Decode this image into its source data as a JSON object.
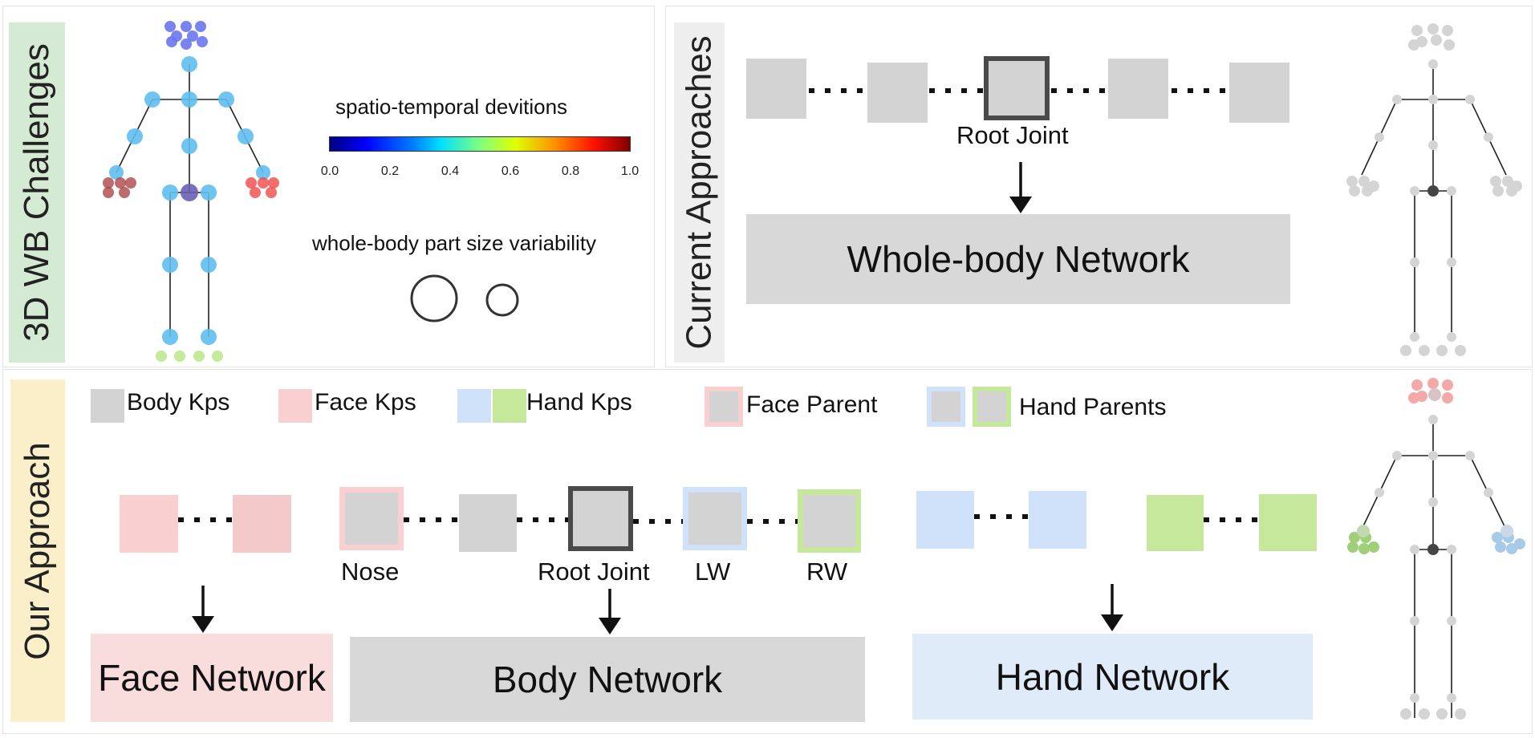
{
  "challenges": {
    "side_label": "3D WB Challenges",
    "colorbar_title": "spatio-temporal devitions",
    "colorbar_ticks": [
      "0.0",
      "0.2",
      "0.4",
      "0.6",
      "0.8",
      "1.0"
    ],
    "size_title": "whole-body part size variability"
  },
  "current": {
    "side_label": "Current Approaches",
    "root_label": "Root Joint",
    "network_label": "Whole-body Network"
  },
  "ours": {
    "side_label": "Our Approach",
    "legend": {
      "body": "Body Kps",
      "face": "Face Kps",
      "hand": "Hand Kps",
      "face_parent": "Face Parent",
      "hand_parents": "Hand Parents"
    },
    "labels": {
      "nose": "Nose",
      "root": "Root Joint",
      "lw": "LW",
      "rw": "RW"
    },
    "networks": {
      "face": "Face Network",
      "body": "Body Network",
      "hand": "Hand Network"
    }
  },
  "colors": {
    "gray_box": "#d3d3d3",
    "face": "#f9cfcf",
    "face_border": "#f6b3b3",
    "hand_blue": "#cfe2fa",
    "hand_green": "#c6e89b",
    "root_border": "#4a4a4a",
    "challenge_bg": "#d5ead3",
    "current_bg": "#eeeeee",
    "ours_bg": "#fbefc9",
    "joint_blue": "#5fbef0",
    "face_joint": "#6b77ee"
  }
}
